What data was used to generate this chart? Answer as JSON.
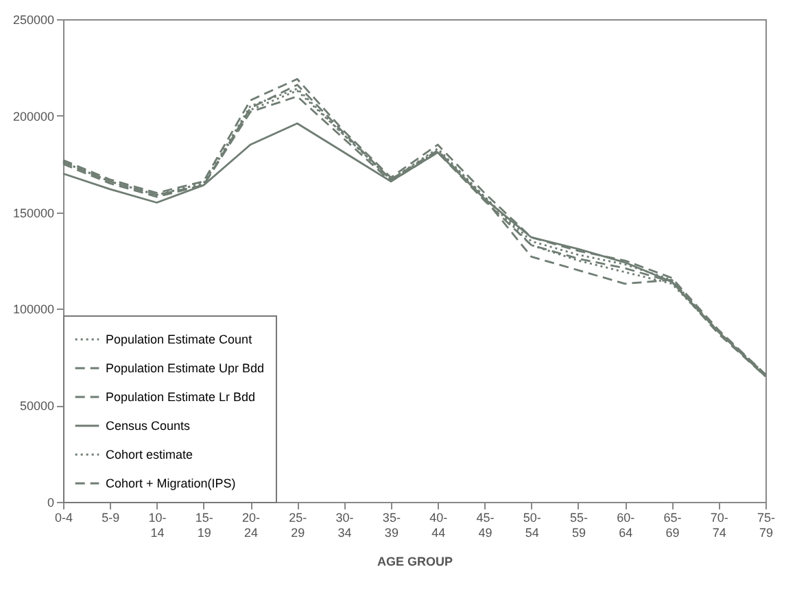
{
  "chart_data": {
    "type": "line",
    "xlabel": "AGE GROUP",
    "categories": [
      "0-4",
      "5-9",
      "10-14",
      "15-19",
      "20-24",
      "25-29",
      "30-34",
      "35-39",
      "40-44",
      "45-49",
      "50-54",
      "55-59",
      "60-64",
      "65-69",
      "70-74",
      "75-79"
    ],
    "series": [
      {
        "name": "Population Estimate Count",
        "color": "#6f7d73",
        "line_style": "dotted",
        "values": [
          176000,
          166000,
          159000,
          165000,
          205000,
          214000,
          190000,
          167000,
          183000,
          158000,
          135000,
          128000,
          123000,
          115000,
          88000,
          66000
        ]
      },
      {
        "name": "Population Estimate Upr Bdd",
        "color": "#6f7d73",
        "line_style": "dashed",
        "values": [
          177000,
          167000,
          160000,
          166000,
          208000,
          219000,
          192000,
          168000,
          185000,
          160000,
          137000,
          130000,
          125000,
          116000,
          89000,
          66000
        ]
      },
      {
        "name": "Population Estimate Lr Bdd",
        "color": "#6f7d73",
        "line_style": "dashed",
        "values": [
          175000,
          165000,
          158000,
          164000,
          202000,
          210000,
          188000,
          166000,
          181000,
          156000,
          133000,
          126000,
          121000,
          114000,
          87000,
          65000
        ]
      },
      {
        "name": "Census Counts",
        "color": "#6f7d73",
        "line_style": "solid",
        "values": [
          170000,
          162000,
          155000,
          164000,
          185000,
          196000,
          181000,
          166000,
          181000,
          157000,
          137000,
          131000,
          124000,
          114000,
          88000,
          65000
        ]
      },
      {
        "name": "Cohort estimate",
        "color": "#6f7d73",
        "line_style": "dotted",
        "values": [
          176000,
          166000,
          159000,
          165000,
          203000,
          213000,
          190000,
          167000,
          182000,
          158000,
          133000,
          125000,
          119000,
          113000,
          88000,
          66000
        ]
      },
      {
        "name": "Cohort  + Migration(IPS)",
        "color": "#6f7d73",
        "line_style": "dashed",
        "values": [
          176000,
          166000,
          159000,
          164000,
          204000,
          216000,
          191000,
          167000,
          182000,
          157000,
          127000,
          120000,
          113000,
          115000,
          88000,
          66000
        ]
      }
    ],
    "ylim": [
      0,
      250000
    ],
    "yticks": [
      0,
      50000,
      100000,
      150000,
      200000,
      250000
    ],
    "grid": false,
    "legend": "bottom left"
  }
}
